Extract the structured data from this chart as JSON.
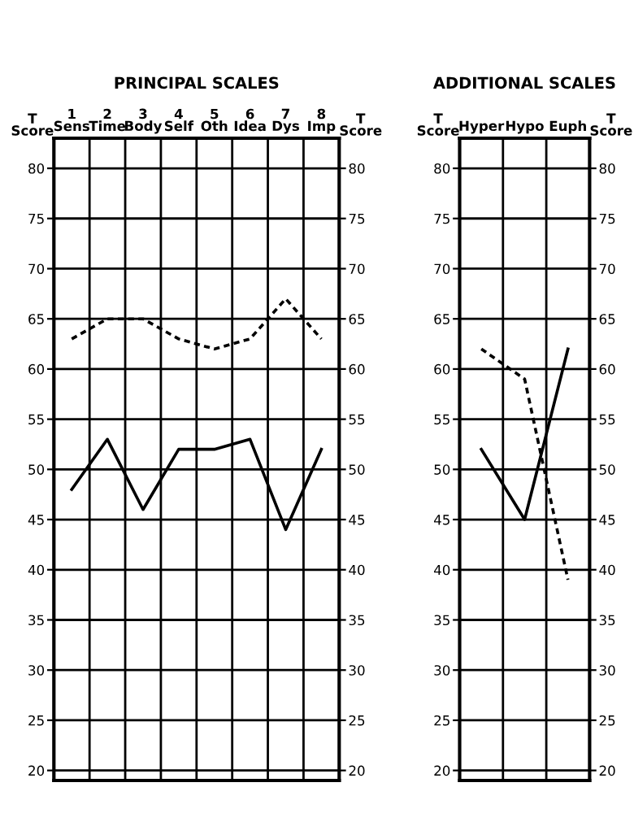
{
  "chart_data": [
    {
      "type": "line",
      "title": "PRINCIPAL SCALES",
      "ylabel": "T\nScore",
      "y2label": "T\nScore",
      "categories": [
        "1\nSens",
        "2\nTime",
        "3\nBody",
        "4\nSelf",
        "5\nOth",
        "6\nIdea",
        "7\nDys",
        "8\nImp"
      ],
      "series": [
        {
          "color": "#000000",
          "line_style": "solid",
          "values": [
            48,
            53,
            46,
            52,
            52,
            53,
            44,
            52
          ]
        },
        {
          "color": "#000000",
          "line_style": "dashed",
          "values": [
            63,
            65,
            65,
            63,
            62,
            63,
            67,
            63
          ]
        }
      ],
      "ylim": [
        19,
        83
      ],
      "yticks": [
        20,
        25,
        30,
        35,
        40,
        45,
        50,
        55,
        60,
        65,
        70,
        75,
        80
      ],
      "y2lim": [
        19,
        83
      ],
      "y2ticks": [
        20,
        25,
        30,
        35,
        40,
        45,
        50,
        55,
        60,
        65,
        70,
        75,
        80
      ],
      "grid": true,
      "legend": false,
      "marker": "none"
    },
    {
      "type": "line",
      "title": "ADDITIONAL SCALES",
      "ylabel": "T\nScore",
      "y2label": "T\nScore",
      "categories": [
        "Hyper",
        "Hypo",
        "Euph"
      ],
      "series": [
        {
          "color": "#000000",
          "line_style": "solid",
          "values": [
            52,
            45,
            62
          ]
        },
        {
          "color": "#000000",
          "line_style": "dashed",
          "values": [
            62,
            59,
            39
          ]
        }
      ],
      "ylim": [
        19,
        83
      ],
      "yticks": [
        20,
        25,
        30,
        35,
        40,
        45,
        50,
        55,
        60,
        65,
        70,
        75,
        80
      ],
      "y2lim": [
        19,
        83
      ],
      "y2ticks": [
        20,
        25,
        30,
        35,
        40,
        45,
        50,
        55,
        60,
        65,
        70,
        75,
        80
      ],
      "grid": true,
      "legend": false,
      "marker": "none"
    }
  ]
}
